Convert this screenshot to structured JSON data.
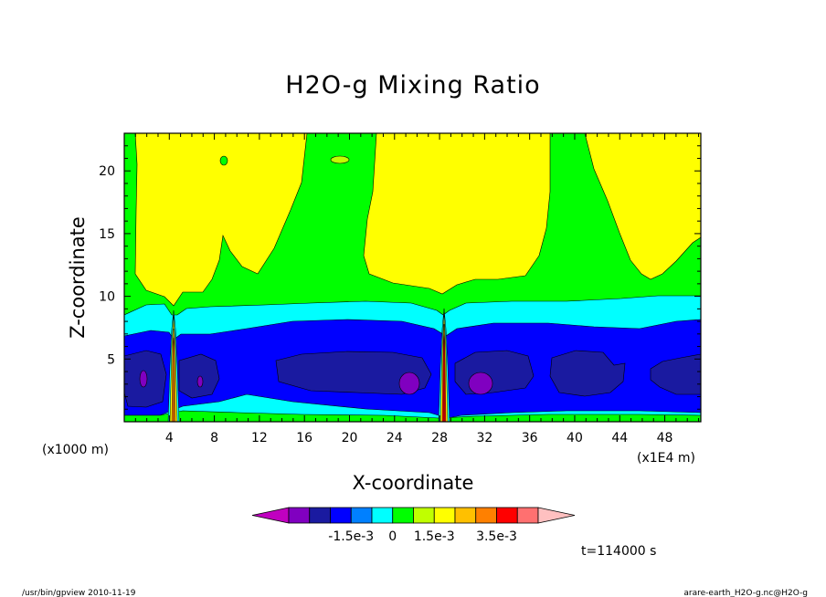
{
  "chart_data": {
    "type": "heatmap",
    "subtype": "filled-contour",
    "title": "H2O-g Mixing Ratio",
    "xlabel": "X-coordinate",
    "ylabel": "Z-coordinate",
    "x_unit_note": "(x1000 m)",
    "x_scale_note": "(x1E4 m)",
    "x_ticks": [
      "4",
      "8",
      "12",
      "16",
      "20",
      "24",
      "28",
      "32",
      "36",
      "40",
      "44",
      "48"
    ],
    "y_ticks": [
      "5",
      "10",
      "15",
      "20"
    ],
    "xlim": [
      0,
      51.2
    ],
    "ylim": [
      0,
      23
    ],
    "colorbar": {
      "colors": [
        "#c000c0",
        "#8000c0",
        "#1a1aa0",
        "#0000ff",
        "#0080ff",
        "#00ffff",
        "#00ff00",
        "#c0ff00",
        "#ffff00",
        "#ffc000",
        "#ff8000",
        "#ff0000",
        "#ff7070",
        "#ffc0c0"
      ],
      "labels": [
        "-1.5e-3",
        "0",
        "1.5e-3",
        "3.5e-3"
      ]
    },
    "regions": [
      {
        "level": "yellow",
        "description": "upper layer, z > ~12"
      },
      {
        "level": "green",
        "description": "mid layer, z ~8-12"
      },
      {
        "level": "cyan",
        "description": "layer z ~6-8"
      },
      {
        "level": "blue",
        "description": "layer z ~1-6"
      },
      {
        "level": "dark-blue",
        "description": "cores near z ~2-5"
      },
      {
        "level": "purple",
        "description": "minima near x~25, x~31, x~2"
      }
    ],
    "time_label": "t=114000 s"
  },
  "footer": {
    "left": "/usr/bin/gpview   2010-11-19",
    "right": "arare-earth_H2O-g.nc@H2O-g"
  }
}
